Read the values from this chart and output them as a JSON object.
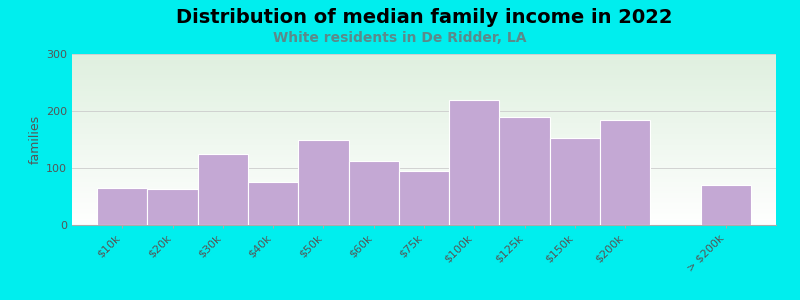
{
  "title": "Distribution of median family income in 2022",
  "subtitle": "White residents in De Ridder, LA",
  "subtitle_color": "#5B8A8A",
  "ylabel": "families",
  "background_color": "#00EEEE",
  "plot_bg_top_left": "#dff0df",
  "plot_bg_bottom_right": "#f8f8ff",
  "bar_color": "#C4A8D4",
  "categories": [
    "$10k",
    "$20k",
    "$30k",
    "$40k",
    "$50k",
    "$60k",
    "$75k",
    "$100k",
    "$125k",
    "$150k",
    "$200k",
    "> $200k"
  ],
  "values": [
    65,
    63,
    125,
    75,
    150,
    112,
    95,
    220,
    190,
    153,
    185,
    70
  ],
  "ylim": [
    0,
    300
  ],
  "yticks": [
    0,
    100,
    200,
    300
  ],
  "title_fontsize": 14,
  "subtitle_fontsize": 10,
  "ylabel_fontsize": 9,
  "tick_fontsize": 8,
  "bar_widths": [
    1,
    1,
    1,
    1,
    1,
    1,
    1,
    1,
    1,
    1,
    1,
    1
  ],
  "bar_lefts": [
    0,
    1,
    2,
    3,
    4,
    5,
    6,
    7,
    8,
    9,
    10,
    12
  ]
}
